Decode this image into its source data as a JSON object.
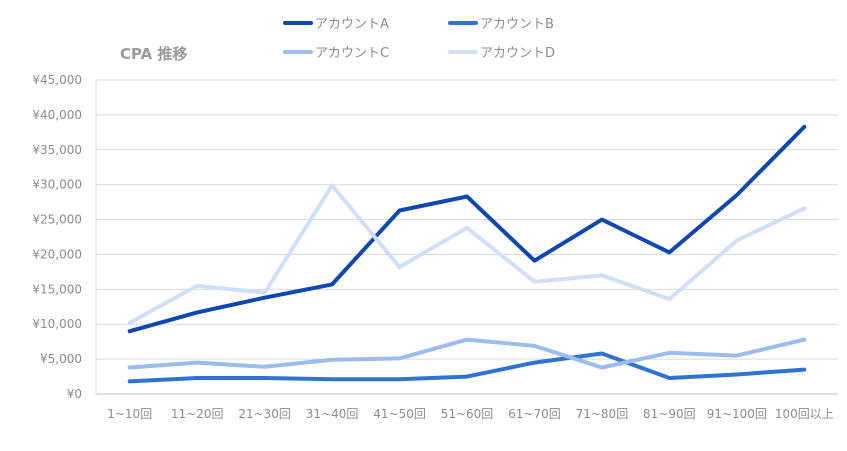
{
  "chart_data": {
    "type": "line",
    "title": "CPA 推移",
    "xlabel": "",
    "ylabel": "",
    "categories": [
      "1~10回",
      "11~20回",
      "21~30回",
      "31~40回",
      "41~50回",
      "51~60回",
      "61~70回",
      "71~80回",
      "81~90回",
      "91~100回",
      "100回以上"
    ],
    "y_ticks": [
      "¥0",
      "¥5,000",
      "¥10,000",
      "¥15,000",
      "¥20,000",
      "¥25,000",
      "¥30,000",
      "¥35,000",
      "¥40,000",
      "¥45,000"
    ],
    "ylim": [
      0,
      45000
    ],
    "grid": true,
    "legend_position": "top",
    "series": [
      {
        "name": "アカウントA",
        "color": "#0d47b5",
        "values": [
          9000,
          11700,
          13800,
          15700,
          26300,
          28300,
          19100,
          25000,
          20300,
          28500,
          38300
        ]
      },
      {
        "name": "アカウントB",
        "color": "#2f72d6",
        "values": [
          1800,
          2300,
          2300,
          2100,
          2100,
          2500,
          4500,
          5800,
          2300,
          2800,
          3500
        ]
      },
      {
        "name": "アカウントC",
        "color": "#9bbcec",
        "values": [
          3800,
          4500,
          3900,
          4900,
          5100,
          7800,
          6900,
          3800,
          5900,
          5500,
          7800
        ]
      },
      {
        "name": "アカウントD",
        "color": "#cfdff6",
        "values": [
          10200,
          15500,
          14500,
          29900,
          18200,
          23800,
          16100,
          17000,
          13600,
          22000,
          26600
        ]
      }
    ]
  }
}
